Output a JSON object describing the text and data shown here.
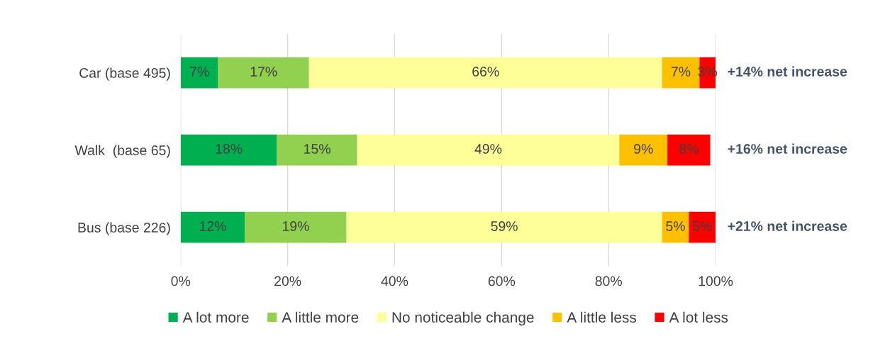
{
  "chart_data": {
    "type": "bar",
    "orientation": "horizontal",
    "stacked": true,
    "categories": [
      "Car (base 495)",
      "Walk  (base 65)",
      "Bus (base 226)"
    ],
    "series": [
      {
        "name": "A lot more",
        "color": "#00b050",
        "values": [
          7,
          18,
          12
        ],
        "value_labels": [
          "7%",
          "18%",
          "12%"
        ]
      },
      {
        "name": "A little more",
        "color": "#92d050",
        "values": [
          17,
          15,
          19
        ],
        "value_labels": [
          "17%",
          "15%",
          "19%"
        ]
      },
      {
        "name": "No noticeable change",
        "color": "#ffff99",
        "values": [
          66,
          49,
          59
        ],
        "value_labels": [
          "66%",
          "49%",
          "59%"
        ]
      },
      {
        "name": "A little less",
        "color": "#ffc000",
        "values": [
          7,
          9,
          5
        ],
        "value_labels": [
          "7%",
          "9%",
          "5%"
        ]
      },
      {
        "name": "A lot less",
        "color": "#ff0000",
        "values": [
          3,
          8,
          5
        ],
        "value_labels": [
          "3%",
          "8%",
          "5%"
        ]
      }
    ],
    "xlim": [
      0,
      100
    ],
    "xticks": [
      {
        "value": 0,
        "label": "0%"
      },
      {
        "value": 20,
        "label": "20%"
      },
      {
        "value": 40,
        "label": "40%"
      },
      {
        "value": 60,
        "label": "60%"
      },
      {
        "value": 80,
        "label": "80%"
      },
      {
        "value": 100,
        "label": "100%"
      }
    ],
    "annotations": [
      "+14% net increase",
      "+16% net increase",
      "+21% net increase"
    ],
    "grid": "x",
    "legend": "bottom"
  }
}
